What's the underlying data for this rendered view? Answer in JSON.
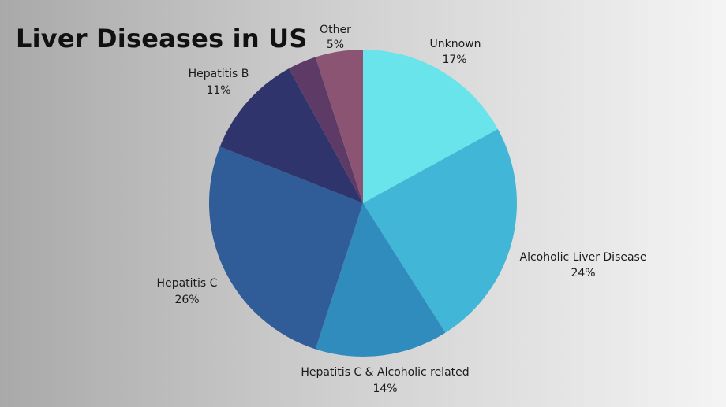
{
  "chart_data": {
    "type": "pie",
    "title": "Liver Diseases in US",
    "slices": [
      {
        "label": "Unknown",
        "value": 17,
        "display": "17%",
        "color": "#69e4ea"
      },
      {
        "label": "Alcoholic Liver Disease",
        "value": 24,
        "display": "24%",
        "color": "#42b6d7"
      },
      {
        "label": "Hepatitis C & Alcoholic related",
        "value": 14,
        "display": "14%",
        "color": "#2f8cbd"
      },
      {
        "label": "Hepatitis C",
        "value": 26,
        "display": "26%",
        "color": "#305c98"
      },
      {
        "label": "Hepatitis B",
        "value": 11,
        "display": "11%",
        "color": "#2f356c"
      },
      {
        "label": "",
        "value": 3,
        "display": "",
        "color": "#5e3a67"
      },
      {
        "label": "Other",
        "value": 5,
        "display": "5%",
        "color": "#8b5472"
      }
    ]
  }
}
